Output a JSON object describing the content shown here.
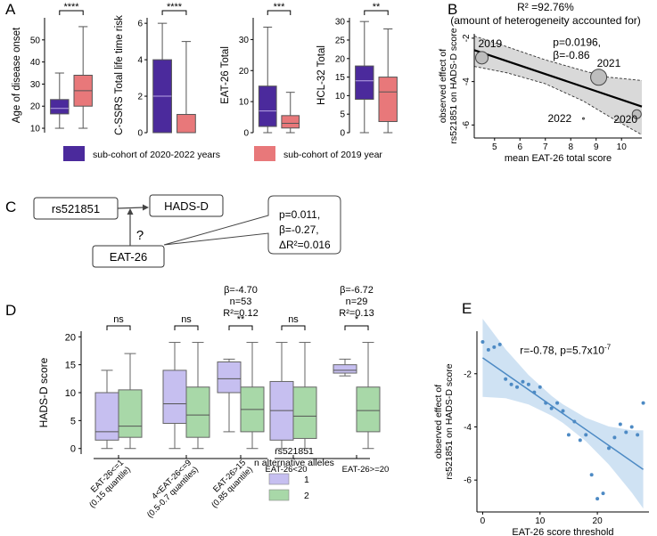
{
  "colors": {
    "purple": "#4b2a9c",
    "salmon": "#e8787a",
    "lav": "#c6bff0",
    "mint": "#a8d8a8",
    "grey": "#bdbdbd",
    "band": "#d9d9d9",
    "line": "#000000",
    "blue": "#4d8ac4",
    "blueband": "#c7ddf1"
  },
  "panel_letters": {
    "a": "A",
    "b": "B",
    "c": "C",
    "d": "D",
    "e": "E"
  },
  "chart_data": [
    {
      "panel": "A",
      "type": "box",
      "legend": {
        "purple": "sub-cohort of 2020-2022 years",
        "salmon": "sub-cohort of 2019 year"
      },
      "subplots": [
        {
          "ylabel": "Age of disease onset",
          "ylim": [
            8,
            60
          ],
          "yticks": [
            10,
            20,
            30,
            40,
            50
          ],
          "significance": "****",
          "boxes": [
            {
              "group": "2020-2022",
              "min": 10,
              "q1": 16.5,
              "median": 19,
              "q3": 23,
              "max": 35
            },
            {
              "group": "2019",
              "min": 10,
              "q1": 20,
              "median": 27,
              "q3": 34,
              "max": 56
            }
          ]
        },
        {
          "ylabel": "C-SSRS Total life time risk",
          "ylim": [
            0,
            6.3
          ],
          "yticks": [
            0,
            2,
            4,
            6
          ],
          "significance": "****",
          "boxes": [
            {
              "group": "2020-2022",
              "min": 0,
              "q1": 0,
              "median": 2,
              "q3": 4,
              "max": 6
            },
            {
              "group": "2019",
              "min": 0,
              "q1": 0,
              "median": 0,
              "q3": 1,
              "max": 5
            }
          ]
        },
        {
          "ylabel": "EAT-26 Total",
          "ylim": [
            0,
            37
          ],
          "yticks": [
            0,
            10,
            20,
            30
          ],
          "significance": "***",
          "boxes": [
            {
              "group": "2020-2022",
              "min": 0,
              "q1": 2,
              "median": 7,
              "q3": 15,
              "max": 34
            },
            {
              "group": "2019",
              "min": 0,
              "q1": 1.5,
              "median": 3,
              "q3": 5.5,
              "max": 13
            }
          ]
        },
        {
          "ylabel": "HCL-32 Total",
          "ylim": [
            0,
            31
          ],
          "yticks": [
            0,
            5,
            10,
            15,
            20,
            25,
            30
          ],
          "significance": "**",
          "boxes": [
            {
              "group": "2020-2022",
              "min": 0,
              "q1": 9,
              "median": 14,
              "q3": 18,
              "max": 30
            },
            {
              "group": "2019",
              "min": 0,
              "q1": 3,
              "median": 11,
              "q3": 15,
              "max": 28
            }
          ]
        }
      ]
    },
    {
      "panel": "B",
      "type": "scatter",
      "title": "R² =92.76%",
      "subtitle": "(amount of heterogeneity accounted for)",
      "xlabel": "mean EAT-26 total score",
      "ylabel": "observed effect of rs521851 on HADS-D score",
      "xlim": [
        4.2,
        10.8
      ],
      "ylim": [
        -6.6,
        -1.8
      ],
      "xticks": [
        5,
        6,
        7,
        8,
        9,
        10
      ],
      "yticks": [
        -6,
        -4,
        -2
      ],
      "annotation": "p=0.0196, β=-0.86",
      "points": [
        {
          "label": "2019",
          "x": 4.5,
          "y": -2.9,
          "size": 7
        },
        {
          "label": "2021",
          "x": 9.1,
          "y": -3.8,
          "size": 9
        },
        {
          "label": "2022",
          "x": 8.5,
          "y": -5.7,
          "size": 1
        },
        {
          "label": "2020",
          "x": 10.6,
          "y": -5.5,
          "size": 5
        }
      ],
      "fit": {
        "x": [
          4.2,
          10.8
        ],
        "y": [
          -2.55,
          -5.15
        ]
      },
      "ci_upper": {
        "x": [
          4.2,
          5.5,
          7,
          8.5,
          9.5,
          10.8
        ],
        "y": [
          -1.9,
          -2.4,
          -3.0,
          -3.5,
          -3.8,
          -3.95
        ]
      },
      "ci_lower": {
        "x": [
          4.2,
          5.5,
          7,
          8.5,
          9.5,
          10.8
        ],
        "y": [
          -3.3,
          -3.6,
          -4.1,
          -4.9,
          -5.6,
          -6.45
        ]
      }
    },
    {
      "panel": "D",
      "type": "box",
      "ylabel": "HADS-D score",
      "ylim": [
        -1,
        21
      ],
      "yticks": [
        0,
        5,
        10,
        15,
        20
      ],
      "xlabel": "rs521851",
      "legend_title": "n alternative alleles",
      "legend": [
        "1",
        "2"
      ],
      "groups": [
        {
          "label": "EAT-26<=1",
          "sublabel": "(0.15 quantile)",
          "significance": "ns",
          "stats": null,
          "boxes": [
            {
              "allele": "1",
              "min": 0,
              "q1": 1.5,
              "median": 3,
              "q3": 10,
              "max": 14
            },
            {
              "allele": "2",
              "min": 0,
              "q1": 2,
              "median": 4,
              "q3": 10.5,
              "max": 17
            }
          ]
        },
        {
          "label": "4<EAT-26<=9",
          "sublabel": "(0.5-0.7 quantiles)",
          "significance": "ns",
          "stats": null,
          "boxes": [
            {
              "allele": "1",
              "min": 0,
              "q1": 4.5,
              "median": 8,
              "q3": 14,
              "max": 19
            },
            {
              "allele": "2",
              "min": 0,
              "q1": 2,
              "median": 6,
              "q3": 11,
              "max": 19
            }
          ]
        },
        {
          "label": "EAT-26>15",
          "sublabel": "(0.85 quantile)",
          "significance": "**",
          "stats": [
            "β=-4.70",
            "n=53",
            "R²=0.12"
          ],
          "boxes": [
            {
              "allele": "1",
              "min": 3,
              "q1": 10,
              "median": 12.5,
              "q3": 15.5,
              "max": 16
            },
            {
              "allele": "2",
              "min": 0,
              "q1": 3,
              "median": 7,
              "q3": 11,
              "max": 19
            }
          ]
        },
        {
          "label": "EAT-26<20",
          "sublabel": "",
          "significance": "ns",
          "stats": null,
          "boxes": [
            {
              "allele": "1",
              "min": 0,
              "q1": 1.5,
              "median": 6.8,
              "q3": 12,
              "max": 19
            },
            {
              "allele": "2",
              "min": 0,
              "q1": 1.8,
              "median": 5.8,
              "q3": 11,
              "max": 19
            }
          ]
        },
        {
          "label": "EAT-26>=20",
          "sublabel": "",
          "significance": "*",
          "stats": [
            "β=-6.72",
            "n=29",
            "R²=0.13"
          ],
          "boxes": [
            {
              "allele": "1",
              "min": 13,
              "q1": 13.5,
              "median": 14,
              "q3": 15,
              "max": 16
            },
            {
              "allele": "2",
              "min": 0,
              "q1": 3,
              "median": 6.8,
              "q3": 11,
              "max": 19
            }
          ]
        }
      ]
    },
    {
      "panel": "E",
      "type": "scatter",
      "annotation": "r=-0.78, p=5.7x10",
      "annotation_exp": "-7",
      "xlabel": "EAT-26 score threshold",
      "ylabel": "observed effect of rs521851 on HADS-D score",
      "xlim": [
        -1,
        29
      ],
      "ylim": [
        -7.2,
        -0.4
      ],
      "xticks": [
        0,
        10,
        20
      ],
      "yticks": [
        -6,
        -4,
        -2
      ],
      "x": [
        0,
        1,
        2,
        3,
        4,
        5,
        6,
        7,
        8,
        9,
        10,
        11,
        12,
        13,
        14,
        15,
        16,
        17,
        18,
        19,
        20,
        21,
        22,
        23,
        24,
        25,
        26,
        27,
        28
      ],
      "y": [
        -0.8,
        -1.1,
        -1.0,
        -0.9,
        -2.2,
        -2.4,
        -2.5,
        -2.3,
        -2.4,
        -2.7,
        -2.5,
        -3.1,
        -3.3,
        -3.1,
        -3.4,
        -4.3,
        -3.8,
        -4.5,
        -4.3,
        -5.8,
        -6.7,
        -6.5,
        -4.8,
        -4.4,
        -3.9,
        -4.2,
        -4.0,
        -4.3,
        -3.1
      ],
      "fit": {
        "x": [
          0,
          28
        ],
        "y": [
          -1.4,
          -5.6
        ]
      }
    }
  ],
  "panelC": {
    "box_snp": "rs521851",
    "box_outcome": "HADS-D",
    "box_moderator": "EAT-26",
    "question": "?",
    "callout": [
      "p=0.011,",
      "β=-0.27,",
      "ΔR²=0.016"
    ]
  }
}
